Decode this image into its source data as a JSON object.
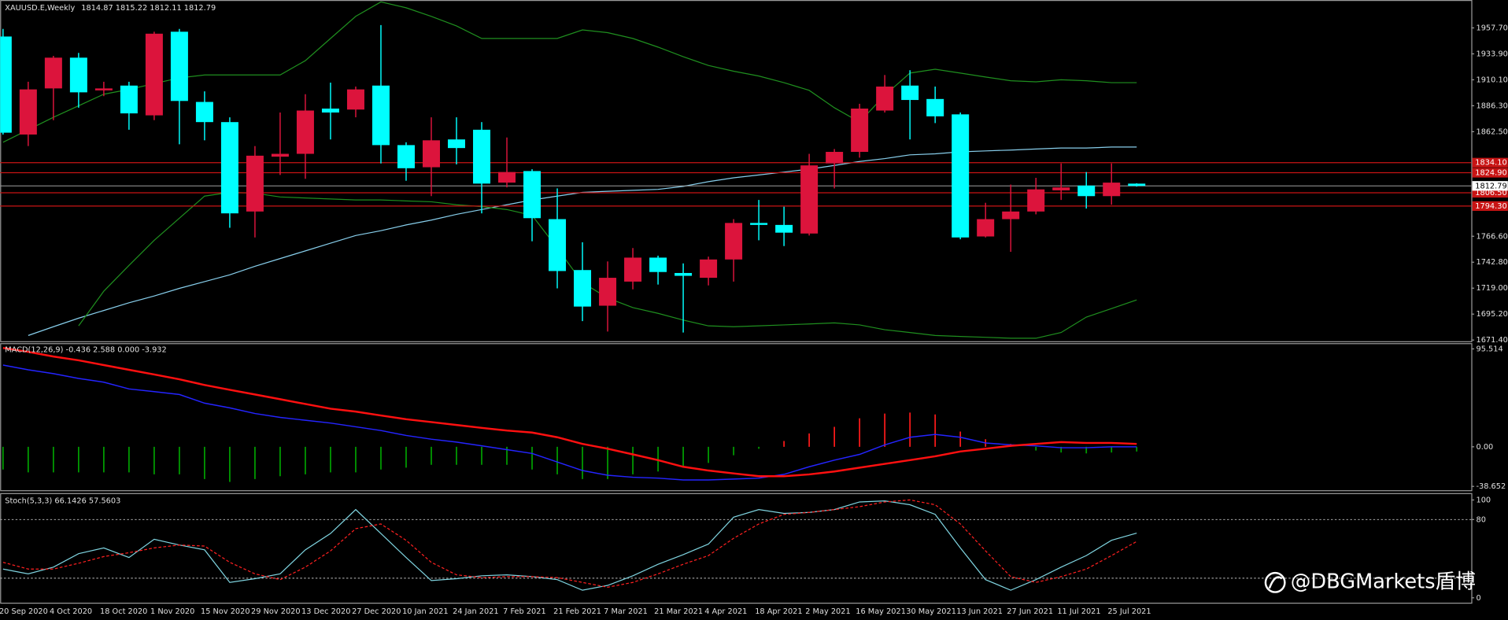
{
  "chart_data": [
    {
      "type": "candlestick",
      "title": "XAUUSD.E,Weekly",
      "categories": [
        "20 Sep 2020",
        null,
        "4 Oct 2020",
        null,
        "18 Oct 2020",
        null,
        "1 Nov 2020",
        null,
        "15 Nov 2020",
        null,
        "29 Nov 2020",
        null,
        "13 Dec 2020",
        null,
        "27 Dec 2020",
        null,
        "10 Jan 2021",
        null,
        "24 Jan 2021",
        null,
        "7 Feb 2021",
        null,
        "21 Feb 2021",
        null,
        "7 Mar 2021",
        null,
        "21 Mar 2021",
        null,
        "4 Apr 2021",
        null,
        "18 Apr 2021",
        null,
        "2 May 2021",
        null,
        "16 May 2021",
        null,
        "30 May 2021",
        null,
        "13 Jun 2021",
        null,
        "27 Jun 2021",
        null,
        "11 Jul 2021",
        null,
        "25 Jul 2021",
        null
      ],
      "open": [
        1949.8,
        1859.9,
        1902.2,
        1930.4,
        1900.4,
        1904.8,
        1877.5,
        1954.2,
        1889.8,
        1871.3,
        1789.3,
        1839.6,
        1842.2,
        1883.7,
        1882.8,
        1904.8,
        1850.2,
        1829.9,
        1855.4,
        1864.3,
        1815.8,
        1826.4,
        1782.3,
        1735.6,
        1702.9,
        1725.0,
        1747.0,
        1732.9,
        1728.5,
        1745.3,
        1778.8,
        1777.0,
        1769.1,
        1833.4,
        1844.0,
        1881.9,
        1904.8,
        1892.5,
        1878.4,
        1766.4,
        1782.3,
        1789.3,
        1808.7,
        1813.1,
        1803.4,
        1814.87
      ],
      "high": [
        1956.8,
        1908.3,
        1932.1,
        1934.8,
        1908.3,
        1908.3,
        1954.2,
        1956.8,
        1899.5,
        1875.7,
        1849.3,
        1880.1,
        1896.9,
        1907.5,
        1903.9,
        1960.3,
        1852.8,
        1875.7,
        1875.7,
        1871.3,
        1857.2,
        1828.1,
        1810.5,
        1761.1,
        1743.5,
        1755.8,
        1748.8,
        1741.7,
        1747.9,
        1782.3,
        1799.9,
        1793.7,
        1842.2,
        1846.6,
        1888.1,
        1914.5,
        1918.9,
        1903.9,
        1880.1,
        1797.3,
        1814.0,
        1820.2,
        1833.4,
        1825.5,
        1833.4,
        1815.22
      ],
      "low": [
        1859.9,
        1849.3,
        1873.1,
        1884.5,
        1895.1,
        1864.3,
        1873.1,
        1851.0,
        1854.6,
        1774.4,
        1765.5,
        1822.8,
        1819.3,
        1855.4,
        1875.7,
        1833.4,
        1817.5,
        1803.4,
        1832.5,
        1787.6,
        1811.4,
        1762.0,
        1718.8,
        1688.8,
        1679.2,
        1717.9,
        1722.3,
        1678.3,
        1721.5,
        1725.0,
        1762.9,
        1757.6,
        1767.3,
        1810.5,
        1838.7,
        1880.1,
        1855.4,
        1870.4,
        1763.8,
        1765.5,
        1752.3,
        1786.7,
        1799.9,
        1792.0,
        1795.5,
        1812.11
      ],
      "close": [
        1861.6,
        1901.3,
        1930.4,
        1898.6,
        1902.2,
        1879.3,
        1952.4,
        1890.7,
        1871.3,
        1787.6,
        1840.5,
        1842.2,
        1881.9,
        1880.1,
        1901.3,
        1850.2,
        1829.0,
        1854.6,
        1847.5,
        1814.9,
        1825.5,
        1783.2,
        1734.7,
        1702.1,
        1728.5,
        1747.0,
        1733.8,
        1730.3,
        1745.3,
        1778.8,
        1777.0,
        1769.9,
        1831.6,
        1844.0,
        1883.7,
        1903.9,
        1891.6,
        1876.6,
        1765.5,
        1782.3,
        1789.3,
        1809.6,
        1811.4,
        1803.4,
        1815.8,
        1812.79
      ],
      "up_color": "#dc143c",
      "down_color": "#00ffff",
      "lines": [
        {
          "color": "#87ceeb",
          "values": [
            null,
            1675.6,
            1683.6,
            1691.5,
            1698.5,
            1705.6,
            1711.8,
            1718.8,
            1725.0,
            1731.2,
            1739.1,
            1746.1,
            1753.2,
            1760.2,
            1767.3,
            1771.7,
            1777.0,
            1781.4,
            1786.7,
            1791.1,
            1795.5,
            1799.9,
            1803.4,
            1806.9,
            1807.8,
            1808.7,
            1809.6,
            1812.3,
            1816.7,
            1820.2,
            1822.8,
            1825.5,
            1828.1,
            1831.6,
            1835.2,
            1837.8,
            1841.3,
            1842.2,
            1844.0,
            1844.9,
            1845.7,
            1846.6,
            1847.5,
            1847.5,
            1848.4,
            1848.4
          ]
        },
        {
          "color": "#1f8f1f",
          "values": [
            1852.8,
            1864.3,
            1875.7,
            1886.3,
            1896.9,
            1901.3,
            1906.6,
            1911.9,
            1914.5,
            1914.5,
            1914.5,
            1914.5,
            1927.7,
            1948.0,
            1968.3,
            1981.5,
            1976.2,
            1968.3,
            1959.5,
            1948.0,
            1948.0,
            1948.0,
            1948.0,
            1955.9,
            1953.3,
            1948.0,
            1940.1,
            1931.3,
            1923.3,
            1918.0,
            1913.6,
            1907.5,
            1900.4,
            1884.5,
            1871.3,
            1896.0,
            1916.3,
            1919.8,
            1916.3,
            1912.7,
            1909.2,
            1908.3,
            1910.1,
            1909.2,
            1907.5,
            1907.5
          ]
        },
        {
          "color": "#1f8f1f",
          "values": [
            null,
            null,
            null,
            1684.4,
            1716.2,
            1739.9,
            1762.9,
            1783.2,
            1803.4,
            1806.9,
            1806.1,
            1802.6,
            1801.7,
            1800.8,
            1799.9,
            1799.9,
            1799.0,
            1798.2,
            1795.5,
            1793.7,
            1791.1,
            1785.8,
            1755.8,
            1724.1,
            1710.0,
            1701.2,
            1695.9,
            1689.7,
            1684.4,
            1683.6,
            1684.4,
            1685.3,
            1686.2,
            1687.1,
            1685.3,
            1680.9,
            1678.3,
            1675.6,
            1674.7,
            1673.9,
            1673.0,
            1673.0,
            1678.3,
            1692.4,
            1700.3,
            1708.2
          ]
        }
      ],
      "levels": [
        {
          "value": 1834.1,
          "label": "1834.10"
        },
        {
          "value": 1824.9,
          "label": "1824.90"
        },
        {
          "value": 1806.5,
          "label": "1806.50"
        },
        {
          "value": 1794.3,
          "label": "1794.30"
        }
      ],
      "level_color": "#c81414",
      "current_color": "#a0a0a0",
      "ylim": [
        1670.3,
        1983.3
      ],
      "yticks": [
        {
          "value": 1957.7,
          "label": "1957.70"
        },
        {
          "value": 1933.9,
          "label": "1933.90"
        },
        {
          "value": 1910.1,
          "label": "1910.10"
        },
        {
          "value": 1886.3,
          "label": "1886.30"
        },
        {
          "value": 1862.5,
          "label": "1862.50"
        },
        {
          "value": 1766.6,
          "label": "1766.60"
        },
        {
          "value": 1742.8,
          "label": "1742.80"
        },
        {
          "value": 1719,
          "label": "1719.00"
        },
        {
          "value": 1695.2,
          "label": "1695.20"
        },
        {
          "value": 1671.4,
          "label": "1671.40"
        }
      ]
    },
    {
      "type": "macd",
      "title": "MACD(12,26,9) -0.436 2.588 0.000 -3.932",
      "histogram": {
        "up_color": "#ff1a1a",
        "down_color": "#00a000",
        "values": [
          -22.2,
          -25.0,
          -25.0,
          -25.0,
          -25.0,
          -25.0,
          -26.9,
          -26.9,
          -31.5,
          -34.3,
          -31.5,
          -28.7,
          -26.9,
          -25.0,
          -25.0,
          -22.2,
          -20.4,
          -17.6,
          -17.6,
          -17.6,
          -17.6,
          -22.2,
          -26.9,
          -31.5,
          -31.5,
          -26.9,
          -24.1,
          -20.4,
          -15.8,
          -8.3,
          -1.9,
          5.6,
          13.0,
          19.5,
          27.8,
          32.4,
          33.4,
          31.5,
          14.8,
          7.4,
          2.8,
          -3.7,
          -5.6,
          -6.5,
          -5.6,
          -4.6
        ]
      },
      "series": [
        {
          "color": "#2424ff",
          "values": [
            79.7,
            75.1,
            71.4,
            66.7,
            63.0,
            56.5,
            53.8,
            51.0,
            42.6,
            38.0,
            32.4,
            28.7,
            25.9,
            23.2,
            19.5,
            15.8,
            11.1,
            7.4,
            4.6,
            0.9,
            -2.8,
            -6.5,
            -14.8,
            -23.2,
            -27.8,
            -29.7,
            -30.6,
            -32.4,
            -32.4,
            -31.5,
            -30.6,
            -26.9,
            -19.5,
            -13.0,
            -7.4,
            1.9,
            9.3,
            12.1,
            9.3,
            3.7,
            1.9,
            0.9,
            -0.9,
            -0.9,
            0.0,
            0.0
          ]
        },
        {
          "color": "#ff1010",
          "values": [
            96.4,
            92.7,
            88.1,
            84.4,
            79.7,
            75.1,
            70.5,
            65.8,
            60.3,
            55.6,
            51.0,
            46.4,
            41.7,
            37.1,
            34.3,
            30.6,
            26.9,
            24.1,
            21.3,
            18.5,
            15.8,
            13.9,
            9.3,
            2.8,
            -1.9,
            -7.4,
            -13.0,
            -19.5,
            -23.2,
            -26.0,
            -28.7,
            -28.7,
            -26.9,
            -24.1,
            -20.4,
            -16.7,
            -13.0,
            -9.3,
            -4.6,
            -1.9,
            0.9,
            2.8,
            4.6,
            3.7,
            3.7,
            2.8
          ]
        }
      ],
      "ylim": [
        -42.4,
        101.1
      ],
      "yticks": [
        95.514,
        {
          "value": 0,
          "label": "0.00"
        },
        -38.652
      ]
    },
    {
      "type": "line",
      "title": "Stoch(5,3,3)",
      "series": [
        {
          "color": "#7fd4e0",
          "dashed": false,
          "values": [
            29.4,
            24.5,
            31.4,
            45.1,
            51.0,
            41.2,
            59.8,
            53.9,
            49.0,
            15.7,
            19.6,
            24.5,
            49.0,
            65.7,
            90.2,
            65.7,
            41.2,
            17.6,
            19.6,
            22.5,
            23.5,
            21.6,
            18.6,
            7.8,
            12.7,
            22.5,
            34.3,
            44.1,
            54.9,
            82.4,
            90.2,
            86.3,
            87.3,
            90.2,
            98.0,
            99.0,
            95.1,
            85.3,
            51.0,
            18.6,
            7.8,
            18.6,
            31.4,
            43.1,
            58.8,
            66.1426
          ]
        },
        {
          "color": "#ff2020",
          "dashed": true,
          "values": [
            36.3,
            29.4,
            29.4,
            35.3,
            42.2,
            46.1,
            51.0,
            53.9,
            52.9,
            36.3,
            24.5,
            18.6,
            31.4,
            48.0,
            70.6,
            75.5,
            58.8,
            36.3,
            23.5,
            20.6,
            21.6,
            21.6,
            20.6,
            15.7,
            10.8,
            15.7,
            24.5,
            34.3,
            43.1,
            60.8,
            75.5,
            85.3,
            87.3,
            90.2,
            93.1,
            98.0,
            100.0,
            95.1,
            75.5,
            48.0,
            21.6,
            15.7,
            21.6,
            29.4,
            43.1,
            57.5603
          ]
        }
      ],
      "levels": [
        20,
        80
      ],
      "ylim": [
        -5,
        107
      ],
      "yticks": [
        100,
        80,
        0
      ]
    }
  ],
  "watermark": "@DBGMarkets盾博"
}
